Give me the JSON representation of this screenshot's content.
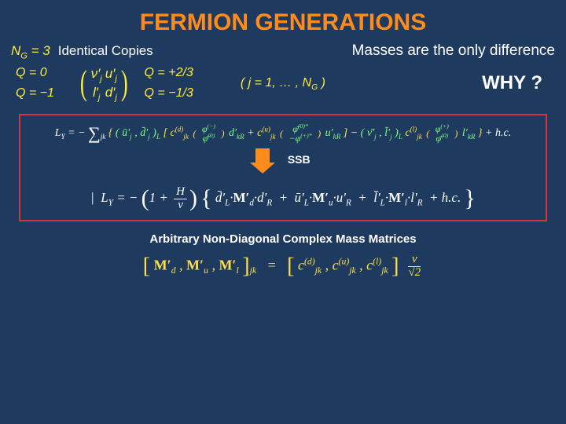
{
  "colors": {
    "background": "#1e3a5f",
    "accent_orange": "#ff8c1a",
    "accent_yellow": "#ffeb3b",
    "text_white": "#ffffff",
    "box_border": "#d6333a",
    "green": "#7fff7f"
  },
  "title": "FERMION  GENERATIONS",
  "ng_label": "N_G = 3",
  "identical": "Identical  Copies",
  "masses": "Masses  are  the  only  difference",
  "q_left": {
    "line1": "Q = 0",
    "line2": "Q = −1"
  },
  "doublet": {
    "r1c1": "ν′_j",
    "r1c2": "u′_j",
    "r2c1": "l′_j",
    "r2c2": "d′_j"
  },
  "q_right": {
    "line1": "Q = +2/3",
    "line2": "Q = −1/3"
  },
  "jrange": "( j = 1, … , N_G )",
  "why": "WHY ?",
  "eqbox": {
    "eq1_lhs": "L_Y = −",
    "eq1_sum": "∑_jk",
    "eq1_term1_left": "( ū′_j , d̄′_j )_L",
    "eq1_br_open": "[",
    "eq1_c_d": "c^(d)_jk",
    "eq1_phi1_top": "φ^(−)",
    "eq1_phi1_bot": "φ̄^(0)",
    "eq1_dprime": "d′_kR",
    "eq1_plus": " + ",
    "eq1_c_u": "c^(u)_jk",
    "eq1_phi2_top": "φ̄^(0)*",
    "eq1_phi2_bot": "− φ^(+)*",
    "eq1_uprime": "u′_kR",
    "eq1_br_close": "]",
    "eq1_minus": " − ",
    "eq1_term2_left": "( ν̄′_j , l̄′_j )_L",
    "eq1_c_l": "c^(l)_jk",
    "eq1_phi3_top": "φ^(+)",
    "eq1_phi3_bot": "φ̄^(0)",
    "eq1_lprime": "l′_kR",
    "eq1_hc": " + h.c.",
    "ssb": "SSB",
    "eq2_lhs": "|  L_Y  = −",
    "eq2_frac_top": "H",
    "eq2_frac_bot": "v",
    "eq2_oneplus": "1 + ",
    "eq2_t1a": "d̄′_L",
    "eq2_t1b": "M′_d",
    "eq2_t1c": "d′_R",
    "eq2_t2a": "ū′_L",
    "eq2_t2b": "M′_u",
    "eq2_t2c": "u′_R",
    "eq2_t3a": "l̄′_L",
    "eq2_t3b": "M′_l",
    "eq2_t3c": "l′_R",
    "eq2_hc": " + h.c."
  },
  "arbitrary": "Arbitrary  Non-Diagonal  Complex  Mass  Matrices",
  "eq3": {
    "lhs_m1": "M′_d",
    "lhs_m2": "M′_u",
    "lhs_m3": "M′_l",
    "sub": "jk",
    "eq": " = ",
    "rhs_c1": "c^(d)_jk",
    "rhs_c2": "c^(u)_jk",
    "rhs_c3": "c^(l)_jk",
    "frac_top": "v",
    "frac_bot": "√2"
  }
}
